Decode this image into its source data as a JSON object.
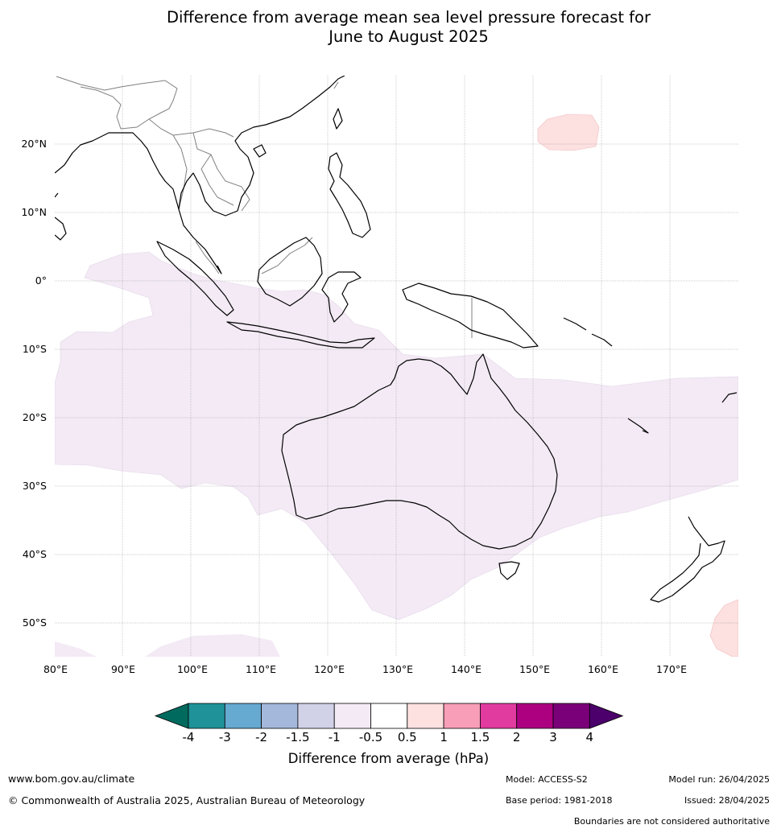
{
  "title_line1": "Difference from average mean sea level pressure forecast for",
  "title_line2": "June to August 2025",
  "lat_labels": [
    "20°N",
    "10°N",
    "0°",
    "10°S",
    "20°S",
    "30°S",
    "40°S",
    "50°S"
  ],
  "lon_labels": [
    "80°E",
    "90°E",
    "100°E",
    "110°E",
    "120°E",
    "130°E",
    "140°E",
    "150°E",
    "160°E",
    "170°E"
  ],
  "colorbar": {
    "title": "Difference from average (hPa)",
    "tick_labels": [
      "-4",
      "-3",
      "-2",
      "-1.5",
      "-1",
      "-0.5",
      "0.5",
      "1",
      "1.5",
      "2",
      "3",
      "4"
    ],
    "colors": [
      "#006a5e",
      "#1e9298",
      "#66a9d1",
      "#a4b8db",
      "#d1d1e8",
      "#f3eaf5",
      "#ffffff",
      "#fde0e0",
      "#f89eb8",
      "#e13b9f",
      "#ac0081",
      "#7a0079",
      "#4c006b"
    ]
  },
  "map": {
    "region": "Indian Ocean, Maritime Continent, Australia and Western Pacific",
    "lon_range": [
      80,
      180
    ],
    "lat_range": [
      -55,
      30
    ],
    "anomaly_colors": {
      "slight_negative": "#f3eaf5",
      "slight_positive": "#fde0e0"
    }
  },
  "footer": {
    "website": "www.bom.gov.au/climate",
    "copyright": "© Commonwealth of Australia 2025, Australian Bureau of Meteorology",
    "model": "Model: ACCESS-S2",
    "base_period": "Base period: 1981-2018",
    "model_run": "Model run: 26/04/2025",
    "issued": "Issued: 28/04/2025",
    "disclaimer": "Boundaries are not considered authoritative"
  }
}
